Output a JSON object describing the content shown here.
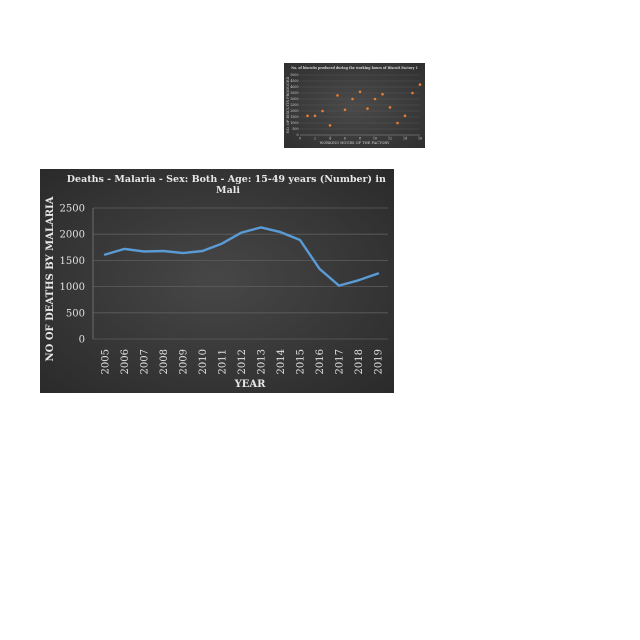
{
  "chart_data": [
    {
      "type": "scatter",
      "title": "No. of biscuits produced during the working hours of Biscuit Factory 1",
      "xlabel": "WORKING HOURS OF THE FACTORY",
      "ylabel": "NO. OF BISCUITS PRODUCED",
      "xlim": [
        0,
        16
      ],
      "ylim": [
        0,
        5000
      ],
      "xticks": [
        "0",
        "2",
        "4",
        "6",
        "8",
        "10",
        "12",
        "14",
        "16"
      ],
      "yticks": [
        "0",
        "500",
        "1000",
        "1500",
        "2000",
        "2500",
        "3000",
        "3500",
        "4000",
        "4500",
        "5000"
      ],
      "marker_color": "#ed7d31",
      "x": [
        1,
        2,
        3,
        4,
        5,
        6,
        7,
        8,
        9,
        10,
        11,
        12,
        13,
        14,
        15,
        16
      ],
      "y": [
        1600,
        1600,
        2000,
        800,
        3300,
        2100,
        3000,
        3600,
        2200,
        3000,
        3400,
        2300,
        1000,
        1600,
        3500,
        4200
      ]
    },
    {
      "type": "line",
      "title": "Deaths - Malaria - Sex: Both - Age: 15-49 years (Number) in Mali",
      "xlabel": "YEAR",
      "ylabel": "NO OF DEATHS BY MALARIA",
      "ylim": [
        0,
        2500
      ],
      "yticks": [
        "0",
        "500",
        "1000",
        "1500",
        "2000",
        "2500"
      ],
      "line_color": "#5b9bd5",
      "grid": true,
      "categories": [
        "2005",
        "2006",
        "2007",
        "2008",
        "2009",
        "2010",
        "2011",
        "2012",
        "2013",
        "2014",
        "2015",
        "2016",
        "2017",
        "2018",
        "2019"
      ],
      "values": [
        1610,
        1720,
        1670,
        1680,
        1640,
        1680,
        1820,
        2030,
        2130,
        2040,
        1890,
        1340,
        1020,
        1120,
        1250
      ]
    }
  ]
}
